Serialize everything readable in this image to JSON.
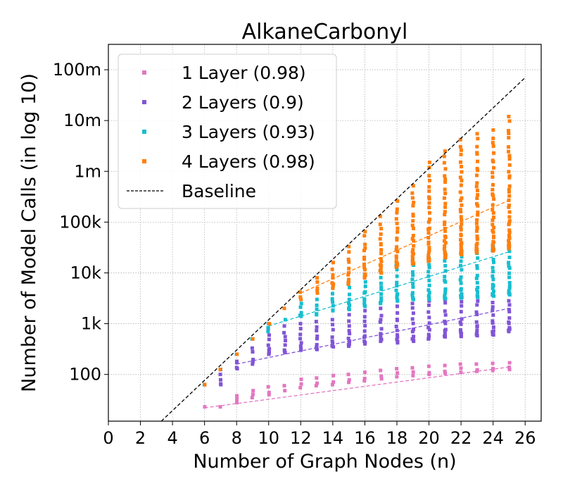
{
  "chart_data": {
    "type": "scatter",
    "title": "AlkaneCarbonyl",
    "xlabel": "Number of Graph Nodes (n)",
    "ylabel": "Number of Model Calls (in log 10)",
    "xlim": [
      0,
      27
    ],
    "ylim_log10": [
      1.08,
      8.5
    ],
    "x_ticks": [
      0,
      2,
      4,
      6,
      8,
      10,
      12,
      14,
      16,
      18,
      20,
      22,
      24,
      26
    ],
    "y_ticks": [
      {
        "value": 100,
        "label": "100"
      },
      {
        "value": 1000,
        "label": "1k"
      },
      {
        "value": 10000,
        "label": "10k"
      },
      {
        "value": 100000,
        "label": "100k"
      },
      {
        "value": 1000000,
        "label": "1m"
      },
      {
        "value": 10000000,
        "label": "10m"
      },
      {
        "value": 100000000,
        "label": "100m"
      }
    ],
    "grid": true,
    "legend_position": "top-left",
    "series": [
      {
        "name": "1 Layer (0.98)",
        "color": "#e377c2",
        "x": [
          6,
          7,
          8,
          9,
          10,
          11,
          12,
          13,
          14,
          15,
          16,
          17,
          18,
          19,
          20,
          21,
          22,
          23,
          24,
          25
        ],
        "y_min": [
          23,
          23,
          28,
          35,
          40,
          48,
          55,
          60,
          63,
          70,
          75,
          82,
          90,
          95,
          100,
          105,
          110,
          115,
          120,
          125
        ],
        "y_max": [
          23,
          23,
          38,
          48,
          57,
          60,
          80,
          85,
          95,
          100,
          110,
          120,
          130,
          135,
          145,
          150,
          160,
          160,
          165,
          170
        ],
        "trend": {
          "x": [
            6,
            25
          ],
          "y": [
            22,
            140
          ]
        }
      },
      {
        "name": "2 Layers (0.9)",
        "color": "#8155d6",
        "x": [
          6,
          7,
          8,
          9,
          10,
          11,
          12,
          13,
          14,
          15,
          16,
          17,
          18,
          19,
          20,
          21,
          22,
          23,
          24,
          25
        ],
        "y_min": [
          63,
          63,
          130,
          160,
          250,
          270,
          300,
          310,
          350,
          360,
          400,
          450,
          420,
          450,
          500,
          550,
          560,
          580,
          600,
          700
        ],
        "y_max": [
          63,
          125,
          250,
          330,
          800,
          900,
          1000,
          1100,
          1200,
          1500,
          1800,
          2000,
          2200,
          2500,
          2800,
          3000,
          3300,
          3500,
          3700,
          4000
        ],
        "trend": {
          "x": [
            8,
            25
          ],
          "y": [
            160,
            2000
          ]
        }
      },
      {
        "name": "3 Layers (0.93)",
        "color": "#17becf",
        "x": [
          6,
          7,
          8,
          9,
          10,
          11,
          12,
          13,
          14,
          15,
          16,
          17,
          18,
          19,
          20,
          21,
          22,
          23,
          24,
          25
        ],
        "y_min": [
          63,
          125,
          250,
          500,
          700,
          1200,
          1400,
          1500,
          1800,
          1900,
          2200,
          2500,
          2800,
          3000,
          3000,
          3100,
          3200,
          3300,
          3500,
          3700
        ],
        "y_max": [
          63,
          125,
          250,
          500,
          1000,
          1300,
          2500,
          3000,
          5000,
          6000,
          9000,
          11000,
          14000,
          17000,
          20000,
          24000,
          27000,
          30000,
          33000,
          36000
        ],
        "trend": {
          "x": [
            10,
            25
          ],
          "y": [
            900,
            26000
          ]
        }
      },
      {
        "name": "4 Layers (0.98)",
        "color": "#ff7f0e",
        "x": [
          6,
          7,
          8,
          9,
          10,
          11,
          12,
          13,
          14,
          15,
          16,
          17,
          18,
          19,
          20,
          21,
          22,
          23,
          24,
          25
        ],
        "y_min": [
          63,
          125,
          250,
          500,
          1000,
          2000,
          3000,
          4000,
          5000,
          6000,
          8000,
          10000,
          13000,
          15000,
          17000,
          20000,
          23000,
          25000,
          27000,
          30000
        ],
        "y_max": [
          63,
          125,
          250,
          500,
          1000,
          2000,
          4200,
          8000,
          16000,
          33000,
          65000,
          130000,
          260000,
          520000,
          1500000,
          2500000,
          4200000,
          5500000,
          6500000,
          12000000
        ],
        "trend": {
          "x": [
            12,
            25
          ],
          "y": [
            4000,
            270000
          ]
        }
      }
    ],
    "baseline": {
      "name": "Baseline",
      "color": "#000000",
      "x": [
        3.3,
        26
      ],
      "y": [
        12,
        70000000
      ]
    }
  }
}
